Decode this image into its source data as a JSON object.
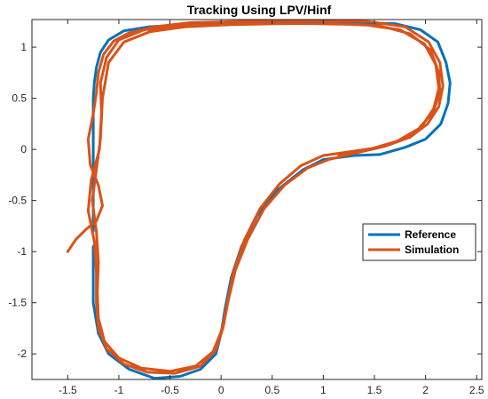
{
  "chart_data": {
    "type": "line",
    "title": "Tracking Using LPV/Hinf",
    "xlabel": "",
    "ylabel": "",
    "xlim": [
      -1.85,
      2.55
    ],
    "ylim": [
      -2.25,
      1.27
    ],
    "xticks": [
      -1.5,
      -1,
      -0.5,
      0,
      0.5,
      1,
      1.5,
      2,
      2.5
    ],
    "xtick_labels": [
      "-1.5",
      "-1",
      "-0.5",
      "0",
      "0.5",
      "1",
      "1.5",
      "2",
      "2.5"
    ],
    "yticks": [
      1,
      0.5,
      0,
      -0.5,
      -1,
      -1.5,
      -2
    ],
    "ytick_labels": [
      "1",
      "0.5",
      "0",
      "-0.5",
      "-1",
      "-1.5",
      "-2"
    ],
    "grid": false,
    "legend_position": "east",
    "series": [
      {
        "name": "Reference",
        "color": "#0072BD",
        "points": [
          [
            -1.25,
            -0.8
          ],
          [
            -1.25,
            -0.2
          ],
          [
            -1.25,
            0.5
          ],
          [
            -1.24,
            0.65
          ],
          [
            -1.22,
            0.8
          ],
          [
            -1.18,
            0.95
          ],
          [
            -1.1,
            1.07
          ],
          [
            -0.95,
            1.16
          ],
          [
            -0.7,
            1.2
          ],
          [
            -0.2,
            1.23
          ],
          [
            0.3,
            1.24
          ],
          [
            0.8,
            1.24
          ],
          [
            1.3,
            1.24
          ],
          [
            1.7,
            1.23
          ],
          [
            1.95,
            1.17
          ],
          [
            2.12,
            1.05
          ],
          [
            2.2,
            0.85
          ],
          [
            2.24,
            0.65
          ],
          [
            2.22,
            0.45
          ],
          [
            2.15,
            0.25
          ],
          [
            2.0,
            0.1
          ],
          [
            1.8,
            0.02
          ],
          [
            1.55,
            -0.05
          ],
          [
            1.3,
            -0.06
          ],
          [
            1.0,
            -0.1
          ],
          [
            0.8,
            -0.2
          ],
          [
            0.55,
            -0.4
          ],
          [
            0.35,
            -0.65
          ],
          [
            0.2,
            -0.95
          ],
          [
            0.1,
            -1.25
          ],
          [
            0.04,
            -1.55
          ],
          [
            0.0,
            -1.8
          ],
          [
            -0.05,
            -2.0
          ],
          [
            -0.2,
            -2.15
          ],
          [
            -0.4,
            -2.22
          ],
          [
            -0.65,
            -2.24
          ],
          [
            -0.9,
            -2.15
          ],
          [
            -1.1,
            -2.0
          ],
          [
            -1.2,
            -1.8
          ],
          [
            -1.25,
            -1.5
          ],
          [
            -1.25,
            -1.2
          ],
          [
            -1.25,
            -0.95
          ]
        ]
      },
      {
        "name": "Simulation",
        "color": "#D95319",
        "points": [
          [
            -1.5,
            -1.0
          ],
          [
            -1.42,
            -0.88
          ],
          [
            -1.32,
            -0.78
          ],
          [
            -1.22,
            -0.7
          ],
          [
            -1.16,
            -0.55
          ],
          [
            -1.2,
            -0.35
          ],
          [
            -1.28,
            -0.15
          ],
          [
            -1.3,
            0.1
          ],
          [
            -1.25,
            0.35
          ],
          [
            -1.22,
            0.55
          ],
          [
            -1.2,
            0.75
          ],
          [
            -1.15,
            0.93
          ],
          [
            -1.05,
            1.06
          ],
          [
            -0.9,
            1.14
          ],
          [
            -0.65,
            1.2
          ],
          [
            -0.3,
            1.24
          ],
          [
            0.1,
            1.25
          ],
          [
            0.5,
            1.26
          ],
          [
            1.0,
            1.26
          ],
          [
            1.45,
            1.25
          ],
          [
            1.8,
            1.2
          ],
          [
            2.03,
            1.05
          ],
          [
            2.14,
            0.85
          ],
          [
            2.17,
            0.62
          ],
          [
            2.13,
            0.42
          ],
          [
            2.02,
            0.25
          ],
          [
            1.85,
            0.12
          ],
          [
            1.6,
            0.03
          ],
          [
            1.3,
            -0.04
          ],
          [
            1.05,
            -0.1
          ],
          [
            0.85,
            -0.18
          ],
          [
            0.62,
            -0.35
          ],
          [
            0.42,
            -0.58
          ],
          [
            0.26,
            -0.88
          ],
          [
            0.14,
            -1.18
          ],
          [
            0.07,
            -1.48
          ],
          [
            0.02,
            -1.74
          ],
          [
            -0.05,
            -1.96
          ],
          [
            -0.2,
            -2.12
          ],
          [
            -0.45,
            -2.19
          ],
          [
            -0.72,
            -2.18
          ],
          [
            -0.95,
            -2.1
          ],
          [
            -1.12,
            -1.95
          ],
          [
            -1.2,
            -1.75
          ],
          [
            -1.22,
            -1.5
          ],
          [
            -1.22,
            -1.2
          ],
          [
            -1.24,
            -0.9
          ],
          [
            -1.3,
            -0.6
          ],
          [
            -1.27,
            -0.3
          ],
          [
            -1.19,
            0.0
          ],
          [
            -1.17,
            0.35
          ],
          [
            -1.18,
            0.65
          ],
          [
            -1.12,
            0.9
          ],
          [
            -1.0,
            1.07
          ],
          [
            -0.75,
            1.17
          ],
          [
            -0.4,
            1.21
          ],
          [
            0.0,
            1.22
          ],
          [
            0.4,
            1.23
          ],
          [
            0.9,
            1.23
          ],
          [
            1.4,
            1.22
          ],
          [
            1.75,
            1.17
          ],
          [
            1.99,
            1.03
          ],
          [
            2.1,
            0.83
          ],
          [
            2.13,
            0.6
          ],
          [
            2.08,
            0.4
          ],
          [
            1.96,
            0.22
          ],
          [
            1.78,
            0.1
          ],
          [
            1.55,
            0.02
          ],
          [
            1.28,
            -0.02
          ],
          [
            1.0,
            -0.06
          ],
          [
            0.78,
            -0.16
          ],
          [
            0.57,
            -0.34
          ],
          [
            0.38,
            -0.58
          ],
          [
            0.23,
            -0.88
          ],
          [
            0.12,
            -1.2
          ],
          [
            0.06,
            -1.5
          ],
          [
            0.01,
            -1.76
          ],
          [
            -0.08,
            -1.98
          ],
          [
            -0.25,
            -2.12
          ],
          [
            -0.5,
            -2.17
          ],
          [
            -0.78,
            -2.14
          ],
          [
            -1.0,
            -2.04
          ],
          [
            -1.14,
            -1.88
          ],
          [
            -1.2,
            -1.65
          ],
          [
            -1.21,
            -1.4
          ],
          [
            -1.2,
            -1.1
          ],
          [
            -1.22,
            -0.8
          ],
          [
            -1.26,
            -0.5
          ],
          [
            -1.22,
            -0.2
          ],
          [
            -1.18,
            0.1
          ],
          [
            -1.16,
            0.5
          ],
          [
            -1.1,
            0.85
          ],
          [
            -0.95,
            1.05
          ],
          [
            -0.7,
            1.15
          ],
          [
            -0.35,
            1.2
          ],
          [
            0.1,
            1.22
          ],
          [
            0.6,
            1.23
          ],
          [
            1.1,
            1.23
          ],
          [
            1.55,
            1.21
          ],
          [
            1.85,
            1.13
          ],
          [
            2.05,
            0.97
          ],
          [
            2.13,
            0.75
          ],
          [
            2.14,
            0.55
          ],
          [
            2.07,
            0.36
          ],
          [
            1.93,
            0.2
          ],
          [
            1.72,
            0.08
          ],
          [
            1.45,
            0.0
          ],
          [
            1.15,
            -0.05
          ]
        ]
      }
    ]
  }
}
